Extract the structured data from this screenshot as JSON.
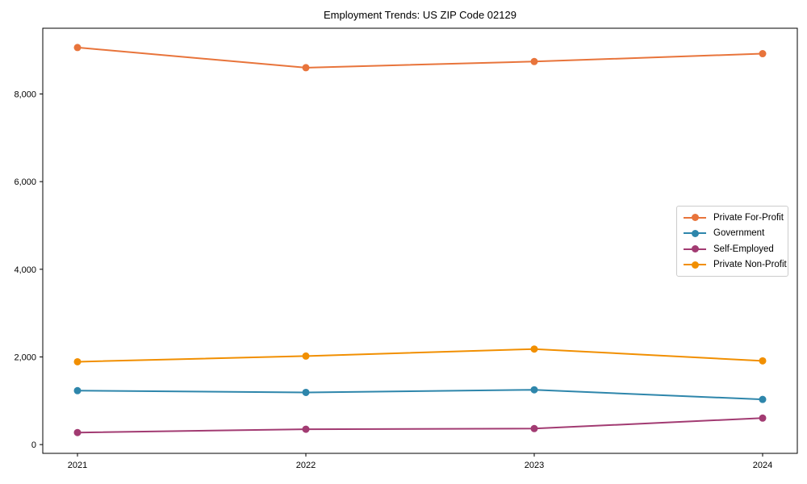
{
  "chart_data": {
    "type": "line",
    "title": "Employment Trends: US ZIP Code 02129",
    "categories": [
      "2021",
      "2022",
      "2023",
      "2024"
    ],
    "series": [
      {
        "name": "Private For-Profit",
        "color": "#E8743B",
        "values": [
          9060,
          8600,
          8740,
          8920
        ]
      },
      {
        "name": "Government",
        "color": "#2E86AB",
        "values": [
          1230,
          1190,
          1250,
          1030
        ]
      },
      {
        "name": "Self-Employed",
        "color": "#A23B72",
        "values": [
          275,
          350,
          365,
          605
        ]
      },
      {
        "name": "Private Non-Profit",
        "color": "#F18F01",
        "values": [
          1890,
          2020,
          2180,
          1910
        ]
      }
    ],
    "yticks": [
      0,
      2000,
      4000,
      6000,
      8000
    ],
    "ytick_labels": [
      "0",
      "2,000",
      "4,000",
      "6,000",
      "8,000"
    ],
    "ylim": [
      -200,
      9500
    ],
    "grid": false,
    "legend_position": "center right",
    "marker": "circle",
    "axis_color": "#000000"
  }
}
